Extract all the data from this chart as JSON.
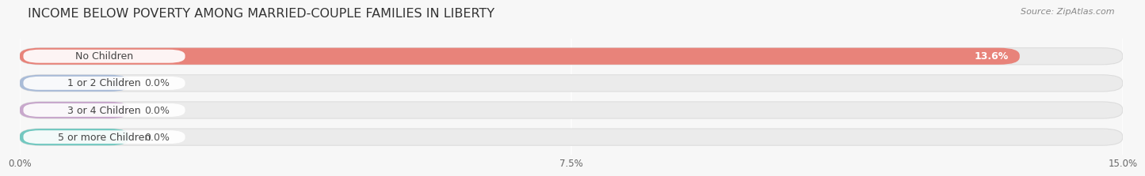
{
  "title": "INCOME BELOW POVERTY AMONG MARRIED-COUPLE FAMILIES IN LIBERTY",
  "source": "Source: ZipAtlas.com",
  "categories": [
    "No Children",
    "1 or 2 Children",
    "3 or 4 Children",
    "5 or more Children"
  ],
  "values": [
    13.6,
    0.0,
    0.0,
    0.0
  ],
  "bar_colors": [
    "#E8837A",
    "#AABCD8",
    "#C8A8CC",
    "#72C8C0"
  ],
  "xlim": [
    0,
    15.0
  ],
  "xticks": [
    0.0,
    7.5,
    15.0
  ],
  "xtick_labels": [
    "0.0%",
    "7.5%",
    "15.0%"
  ],
  "background_color": "#f7f7f7",
  "bar_track_color": "#ebebeb",
  "title_fontsize": 11.5,
  "bar_height": 0.62,
  "label_fontsize": 9,
  "value_fontsize": 9
}
